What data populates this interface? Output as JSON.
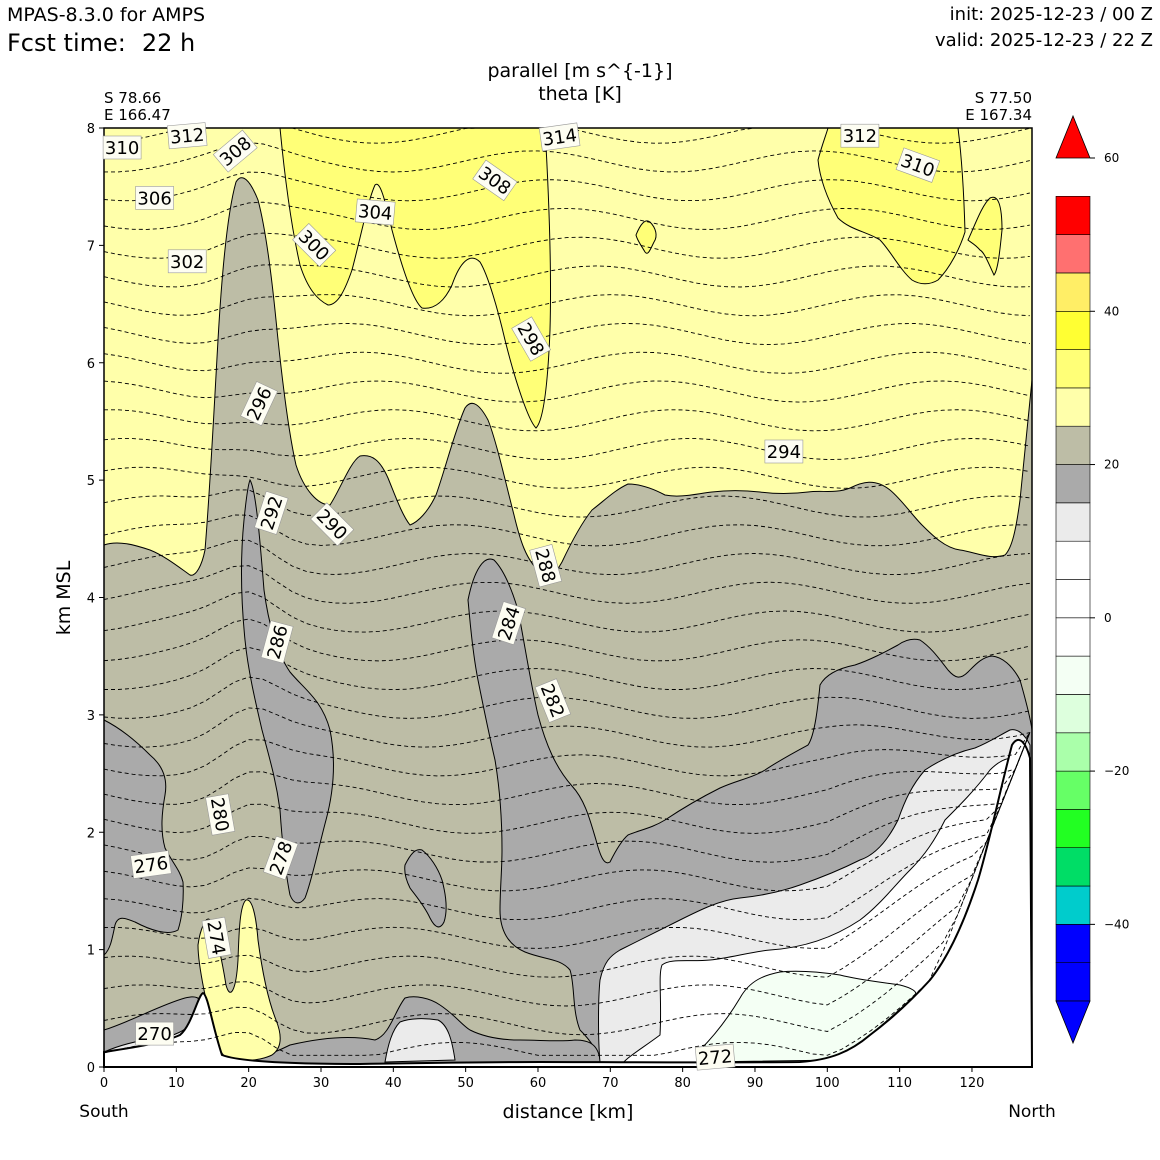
{
  "header": {
    "model": "MPAS-8.3.0 for AMPS",
    "fcst_label": "Fcst time:",
    "fcst_value": "22 h",
    "init": "init: 2025-12-23 / 00 Z",
    "valid": "valid: 2025-12-23 / 22 Z"
  },
  "chart_data": {
    "type": "contour-cross-section",
    "title_line1": "parallel [m s^{-1}]",
    "title_line2": "theta [K]",
    "xlabel": "distance [km]",
    "ylabel": "km MSL",
    "xlim": [
      0,
      128.3
    ],
    "ylim": [
      0,
      8
    ],
    "x_ticks": [
      0,
      10,
      20,
      30,
      40,
      50,
      60,
      70,
      80,
      90,
      100,
      110,
      120
    ],
    "y_ticks": [
      0,
      1,
      2,
      3,
      4,
      5,
      6,
      7,
      8
    ],
    "left_end": {
      "lat": "S 78.66",
      "lon": "E 166.47",
      "label": "South"
    },
    "right_end": {
      "lat": "S 77.50",
      "lon": "E 167.34",
      "label": "North"
    },
    "colorbar": {
      "levels": [
        -50,
        -45,
        -40,
        -35,
        -30,
        -25,
        -20,
        -15,
        -10,
        -5,
        0,
        5,
        10,
        15,
        20,
        25,
        30,
        35,
        40,
        45,
        50,
        55
      ],
      "colors": [
        "#0000ff",
        "#0000ff",
        "#00cccc",
        "#00dd66",
        "#22ff22",
        "#66ff66",
        "#aaffaa",
        "#ddffdd",
        "#f4fff4",
        "#ffffff",
        "#ffffff",
        "#ffffff",
        "#ebebeb",
        "#aaaaaa",
        "#bdbda6",
        "#ffffaa",
        "#ffff77",
        "#ffff33",
        "#ffee66",
        "#ff7070",
        "#ff0000"
      ],
      "over_color": "#ff0000",
      "under_color": "#0000ff",
      "tick_values": [
        60,
        40,
        20,
        0,
        -20,
        -40
      ],
      "tick_labels": [
        "60",
        "40",
        "20",
        "0",
        "−20",
        "−40"
      ]
    },
    "theta_labels": [
      {
        "text": "310",
        "x": 2.5,
        "y": 7.83,
        "rot": 0
      },
      {
        "text": "312",
        "x": 11.5,
        "y": 7.93,
        "rot": -5
      },
      {
        "text": "308",
        "x": 18.2,
        "y": 7.8,
        "rot": -40
      },
      {
        "text": "306",
        "x": 7,
        "y": 7.4,
        "rot": 0
      },
      {
        "text": "314",
        "x": 63,
        "y": 7.92,
        "rot": -8
      },
      {
        "text": "308",
        "x": 54,
        "y": 7.55,
        "rot": 35
      },
      {
        "text": "312",
        "x": 104.5,
        "y": 7.93,
        "rot": 0
      },
      {
        "text": "310",
        "x": 112.5,
        "y": 7.68,
        "rot": 20
      },
      {
        "text": "304",
        "x": 37.5,
        "y": 7.28,
        "rot": 5
      },
      {
        "text": "300",
        "x": 29,
        "y": 7.0,
        "rot": 45
      },
      {
        "text": "302",
        "x": 11.5,
        "y": 6.86,
        "rot": 0
      },
      {
        "text": "298",
        "x": 59,
        "y": 6.2,
        "rot": 60
      },
      {
        "text": "296",
        "x": 21.5,
        "y": 5.65,
        "rot": -65
      },
      {
        "text": "294",
        "x": 94,
        "y": 5.24,
        "rot": 0
      },
      {
        "text": "292",
        "x": 23.2,
        "y": 4.72,
        "rot": -72
      },
      {
        "text": "290",
        "x": 31.5,
        "y": 4.62,
        "rot": 45
      },
      {
        "text": "288",
        "x": 61,
        "y": 4.27,
        "rot": 75
      },
      {
        "text": "286",
        "x": 24,
        "y": 3.62,
        "rot": -75
      },
      {
        "text": "284",
        "x": 56,
        "y": 3.78,
        "rot": -72
      },
      {
        "text": "282",
        "x": 62,
        "y": 3.12,
        "rot": 68
      },
      {
        "text": "280",
        "x": 16,
        "y": 2.15,
        "rot": 80
      },
      {
        "text": "278",
        "x": 24.5,
        "y": 1.78,
        "rot": -70
      },
      {
        "text": "276",
        "x": 6.5,
        "y": 1.72,
        "rot": -8
      },
      {
        "text": "274",
        "x": 15.5,
        "y": 1.1,
        "rot": 80
      },
      {
        "text": "270",
        "x": 7,
        "y": 0.28,
        "rot": 0
      },
      {
        "text": "272",
        "x": 84.5,
        "y": 0.08,
        "rot": -5
      }
    ]
  }
}
